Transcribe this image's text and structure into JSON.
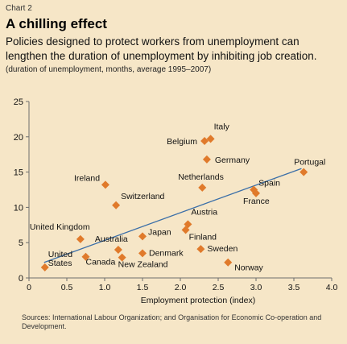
{
  "chart_label": "Chart 2",
  "title": "A chilling effect",
  "subtitle": "Policies designed to protect workers from unemployment can lengthen the duration of unemployment by inhibiting job creation.",
  "note": "(duration of unemployment, months, average 1995–2007)",
  "sources": "Sources: International Labour Organization; and Organisation for Economic Co-operation and Development.",
  "colors": {
    "background": "#f6e6c7",
    "marker": "#e07a2b",
    "trendline": "#3b6fa8",
    "axis": "#6e6e6e"
  },
  "chart_data": {
    "type": "scatter",
    "xlabel": "Employment protection (index)",
    "ylabel": "",
    "xlim": [
      0,
      4
    ],
    "ylim": [
      0,
      25
    ],
    "x_ticks": [
      "0",
      "0.5",
      "1.0",
      "1.5",
      "2.0",
      "2.5",
      "3.0",
      "3.5",
      "4.0"
    ],
    "y_ticks": [
      "0",
      "5",
      "10",
      "15",
      "20",
      "25"
    ],
    "grid": false,
    "trendline": {
      "x": [
        0.2,
        3.6
      ],
      "y": [
        2.2,
        15.5
      ]
    },
    "points": [
      {
        "label": "United States",
        "x": 0.21,
        "y": 1.5
      },
      {
        "label": "United Kingdom",
        "x": 0.68,
        "y": 5.5
      },
      {
        "label": "Canada",
        "x": 0.75,
        "y": 3.0
      },
      {
        "label": "Ireland",
        "x": 1.01,
        "y": 13.2
      },
      {
        "label": "Switzerland",
        "x": 1.15,
        "y": 10.3
      },
      {
        "label": "Australia",
        "x": 1.18,
        "y": 4.0
      },
      {
        "label": "New Zealand",
        "x": 1.23,
        "y": 2.9
      },
      {
        "label": "Japan",
        "x": 1.5,
        "y": 5.9
      },
      {
        "label": "Denmark",
        "x": 1.5,
        "y": 3.5
      },
      {
        "label": "Austria",
        "x": 2.1,
        "y": 7.6
      },
      {
        "label": "Finland",
        "x": 2.07,
        "y": 6.8
      },
      {
        "label": "Sweden",
        "x": 2.27,
        "y": 4.1
      },
      {
        "label": "Netherlands",
        "x": 2.29,
        "y": 12.8
      },
      {
        "label": "Belgium",
        "x": 2.32,
        "y": 19.4
      },
      {
        "label": "Italy",
        "x": 2.4,
        "y": 19.7
      },
      {
        "label": "Germany",
        "x": 2.35,
        "y": 16.8
      },
      {
        "label": "Norway",
        "x": 2.63,
        "y": 2.2
      },
      {
        "label": "Spain",
        "x": 2.97,
        "y": 12.5
      },
      {
        "label": "France",
        "x": 3.0,
        "y": 12.0
      },
      {
        "label": "Portugal",
        "x": 3.63,
        "y": 15.0
      }
    ]
  }
}
